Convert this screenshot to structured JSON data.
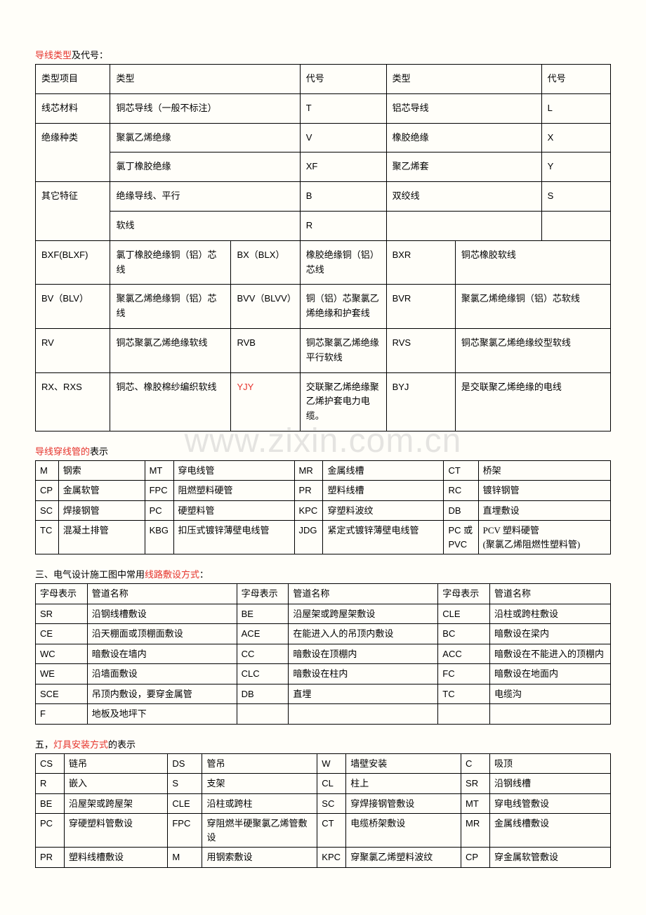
{
  "watermark": "www.zixin.com.cn",
  "section1": {
    "title_red": "导线类型",
    "title_rest": "及代号：",
    "rows": [
      [
        "类型项目",
        "类型",
        "代号",
        "类型",
        "代号"
      ],
      [
        "线芯材料",
        "铜芯导线（一般不标注）",
        "T",
        "铝芯导线",
        "L"
      ],
      [
        "绝缘种类",
        "聚氯乙烯绝缘",
        "V",
        "橡胶绝缘",
        "X"
      ],
      [
        "",
        "氯丁橡胶绝缘",
        "XF",
        "聚乙烯套",
        "Y"
      ],
      [
        "其它特征",
        "绝缘导线、平行",
        "B",
        "双绞线",
        "S"
      ],
      [
        "",
        "软线",
        "R",
        "",
        ""
      ]
    ],
    "rows2": [
      [
        "BXF(BLXF)",
        "氯丁橡胶绝缘铜（铝）芯线",
        "BX（BLX）",
        "橡胶绝缘铜（铝）芯线",
        "BXR",
        "铜芯橡胶软线"
      ],
      [
        "BV（BLV）",
        "聚氯乙烯绝缘铜（铝）芯线",
        "BVV（BLVV）",
        "铜（铝）芯聚氯乙烯绝缘和护套线",
        "BVR",
        "聚氯乙烯绝缘铜（铝）芯软线"
      ],
      [
        "RV",
        "铜芯聚氯乙烯绝缘软线",
        "RVB",
        "铜芯聚氯乙烯绝缘平行软线",
        "RVS",
        "铜芯聚氯乙烯绝缘绞型软线"
      ],
      [
        "RX、RXS",
        "铜芯、橡胶棉纱编织软线",
        "YJY",
        "交联聚乙烯绝缘聚乙烯护套电力电缆。",
        "BYJ",
        "是交联聚乙烯绝缘的电线"
      ]
    ]
  },
  "section2": {
    "title_red": "导线穿线管的",
    "title_rest": "表示",
    "rows": [
      [
        "M",
        "钢索",
        "MT",
        "穿电线管",
        "MR",
        "金属线槽",
        "CT",
        "桥架"
      ],
      [
        "CP",
        "金属软管",
        "FPC",
        "阻燃塑料硬管",
        "PR",
        "塑料线槽",
        "RC",
        "镀锌钢管"
      ],
      [
        "SC",
        "焊接钢管",
        "PC",
        "硬塑料管",
        "KPC",
        "穿塑料波纹",
        "DB",
        "直埋敷设"
      ],
      [
        "TC",
        "混凝土排管",
        "KBG",
        "扣压式镀锌薄壁电线管",
        "JDG",
        "紧定式镀锌薄壁电线管",
        "PC 或 PVC",
        "PCV 塑料硬管\n(聚氯乙烯阻燃性塑料管)"
      ]
    ]
  },
  "section3": {
    "title_pre": "三、电气设计施工图中常用",
    "title_red": "线路敷设方式",
    "title_rest": "：",
    "header": [
      "字母表示",
      "管道名称",
      "字母表示",
      "管道名称",
      "字母表示",
      "管道名称"
    ],
    "rows": [
      [
        "SR",
        "沿钢线槽敷设",
        "BE",
        "沿屋架或跨屋架敷设",
        "CLE",
        "沿柱或跨柱敷设"
      ],
      [
        "CE",
        "沿天棚面或顶棚面敷设",
        "ACE",
        "在能进入人的吊顶内敷设",
        "BC",
        "暗敷设在梁内"
      ],
      [
        "WC",
        "暗敷设在墙内",
        "CC",
        "暗敷设在顶棚内",
        "ACC",
        "暗敷设在不能进入的顶棚内"
      ],
      [
        "WE",
        "沿墙面敷设",
        "CLC",
        "暗敷设在柱内",
        "FC",
        "暗敷设在地面内"
      ],
      [
        "SCE",
        "吊顶内敷设，要穿金属管",
        "DB",
        "直埋",
        "TC",
        "电缆沟"
      ],
      [
        "F",
        "地板及地坪下",
        "",
        "",
        "",
        ""
      ]
    ]
  },
  "section4": {
    "title_pre": "五，",
    "title_red": "灯具安装方式",
    "title_rest": "的表示",
    "rows": [
      [
        "CS",
        "链吊",
        "DS",
        "管吊",
        "W",
        "墙壁安装",
        "C",
        "吸顶"
      ],
      [
        "R",
        "嵌入",
        "S",
        "支架",
        "CL",
        "柱上",
        "SR",
        "沿钢线槽"
      ],
      [
        "BE",
        "沿屋架或跨屋架",
        "CLE",
        "沿柱或跨柱",
        "SC",
        "穿焊接钢管敷设",
        "MT",
        "穿电线管敷设"
      ],
      [
        "PC",
        "穿硬塑料管敷设",
        "FPC",
        "穿阻燃半硬聚氯乙烯管敷设",
        "CT",
        "电缆桥架敷设",
        "MR",
        "金属线槽敷设"
      ],
      [
        "PR",
        "塑料线槽敷设",
        "M",
        "用钢索敷设",
        "KPC",
        "穿聚氯乙烯塑料波纹",
        "CP",
        "穿金属软管敷设"
      ]
    ]
  }
}
